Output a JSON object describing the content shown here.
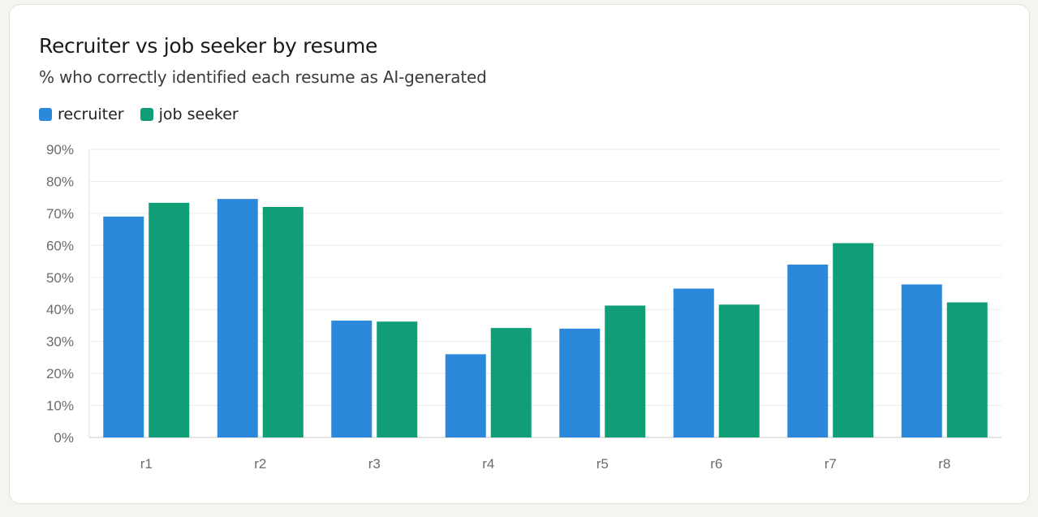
{
  "chart_data": {
    "type": "bar",
    "title": "Recruiter vs job seeker by resume",
    "subtitle": "% who correctly identified each resume as AI-generated",
    "categories": [
      "r1",
      "r2",
      "r3",
      "r4",
      "r5",
      "r6",
      "r7",
      "r8"
    ],
    "series": [
      {
        "name": "recruiter",
        "color": "#2b88db",
        "values": [
          69,
          74.5,
          36.5,
          26,
          34,
          46.5,
          54,
          47.8
        ]
      },
      {
        "name": "job seeker",
        "color": "#0f9e76",
        "values": [
          73.3,
          72,
          36.2,
          34.2,
          41.2,
          41.5,
          60.7,
          42.2
        ]
      }
    ],
    "ylim": [
      0,
      90
    ],
    "yticks": [
      "0%",
      "10%",
      "20%",
      "30%",
      "40%",
      "50%",
      "60%",
      "70%",
      "80%",
      "90%"
    ],
    "grid": true,
    "legend_position": "top-left"
  }
}
